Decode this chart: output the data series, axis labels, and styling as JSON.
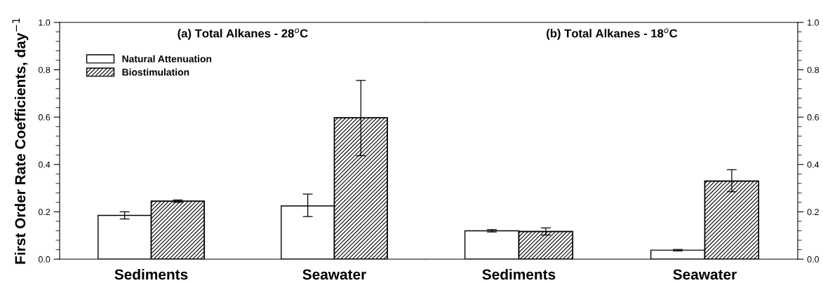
{
  "chart_data": [
    {
      "type": "bar",
      "title": "(a) Total Alkanes - 28$^{o}$C",
      "ylabel": "First Order Rate Coefficients, day$^{−1}$",
      "categories": [
        "Sediments",
        "Seawater"
      ],
      "series": [
        {
          "name": "Natural Attenuation",
          "color": "#ffffff",
          "values": [
            0.185,
            0.225
          ],
          "errors": [
            [
              0.17,
              0.2
            ],
            [
              0.18,
              0.275
            ]
          ]
        },
        {
          "name": "Biostimulation",
          "color": "#000000",
          "values": [
            0.245,
            0.597
          ],
          "errors": [
            [
              0.24,
              0.25
            ],
            [
              0.437,
              0.755
            ]
          ]
        }
      ],
      "ylim": [
        0,
        1.0
      ],
      "yticks": [
        "0.0",
        0.2,
        0.4,
        0.6,
        0.8,
        "1.0"
      ],
      "legend": "top left",
      "grid": false
    },
    {
      "type": "bar",
      "title": "(b) Total Alkanes - 18$^{o}$C",
      "categories": [
        "Sediments",
        "Seawater"
      ],
      "series": [
        {
          "color": "#ffffff",
          "axis": "y2",
          "values": [
            0.12,
            0.038
          ],
          "errors": [
            [
              0.115,
              0.125
            ],
            [
              0.035,
              0.041
            ]
          ]
        },
        {
          "color": "#000000",
          "axis": "y2",
          "values": [
            0.117,
            0.33
          ],
          "errors": [
            [
              0.102,
              0.132
            ],
            [
              0.285,
              0.378
            ]
          ]
        }
      ],
      "y2lim": [
        0,
        1.0
      ],
      "y2ticks": [
        "0.0",
        0.2,
        0.4,
        0.6,
        0.8,
        "1.0"
      ],
      "legend": false,
      "grid": false
    }
  ]
}
